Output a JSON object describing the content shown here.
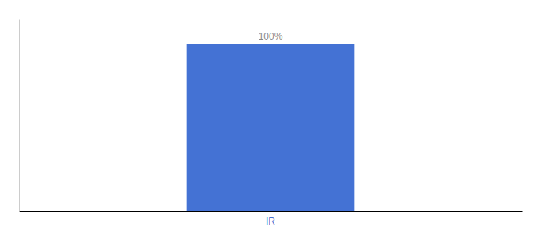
{
  "chart_data": {
    "type": "bar",
    "categories": [
      "IR"
    ],
    "values": [
      100
    ],
    "value_labels": [
      "100%"
    ],
    "data_labels": true,
    "color": "#4472d4",
    "ylim": [
      0,
      115
    ],
    "tick_labels": "x"
  }
}
